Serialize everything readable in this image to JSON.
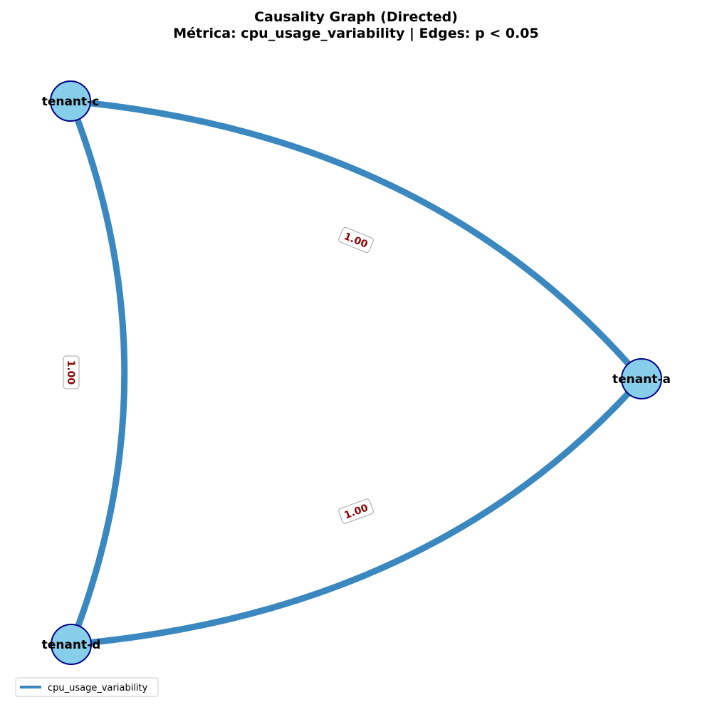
{
  "title": {
    "line1": "Causality Graph (Directed)",
    "line2": "Métrica: cpu_usage_variability | Edges: p < 0.05"
  },
  "colors": {
    "edge": "#3a88bf",
    "node_fill": "#87ceeb",
    "node_stroke": "#00008b",
    "edge_label_text": "#8b0000",
    "edge_label_border": "#a0a0a0"
  },
  "nodes": [
    {
      "id": "tenant-c",
      "label": "tenant-c"
    },
    {
      "id": "tenant-a",
      "label": "tenant-a"
    },
    {
      "id": "tenant-d",
      "label": "tenant-d"
    }
  ],
  "edges": [
    {
      "from": "tenant-c",
      "to": "tenant-a",
      "label": "1.00"
    },
    {
      "from": "tenant-d",
      "to": "tenant-a",
      "label": "1.00"
    },
    {
      "from": "tenant-c",
      "to": "tenant-d",
      "label": "1.00"
    }
  ],
  "legend": {
    "label": "cpu_usage_variability"
  }
}
